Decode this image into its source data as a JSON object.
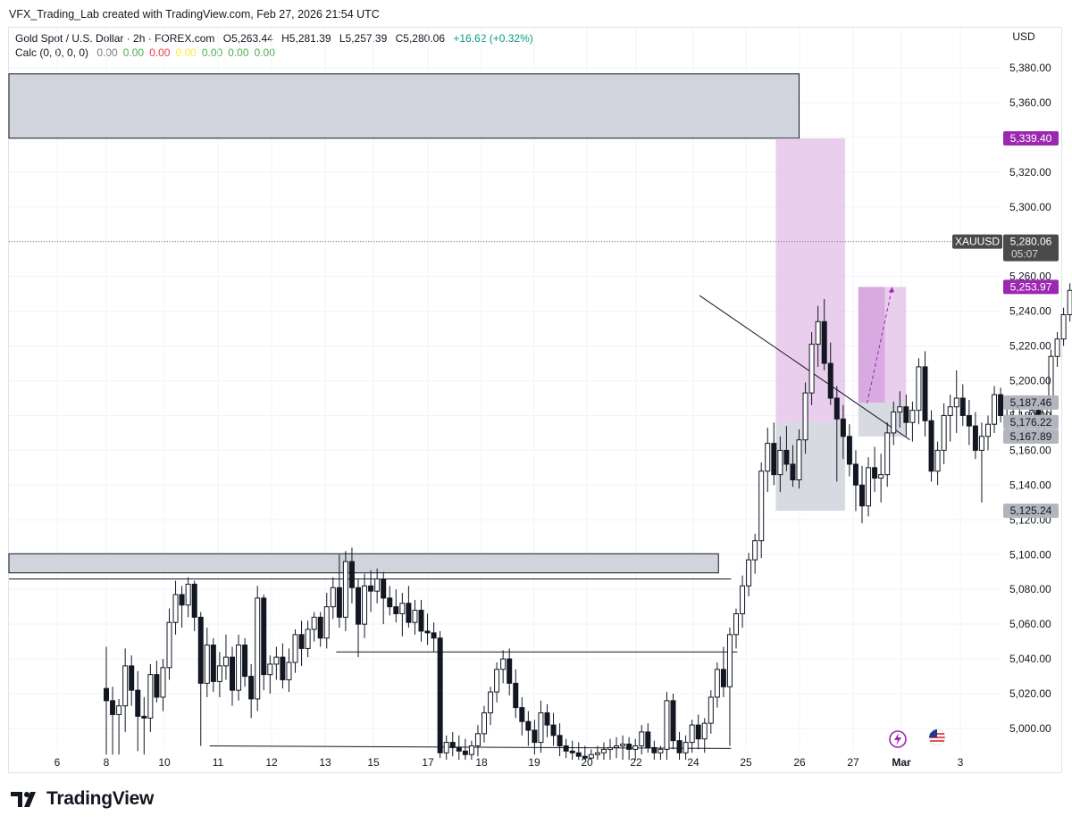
{
  "credit": "VFX_Trading_Lab created with TradingView.com, Feb 27, 2026 21:54 UTC",
  "legend": {
    "symbol": "Gold Spot / U.S. Dollar · 2h · FOREX.com",
    "open": "O5,263.44",
    "high": "H5,281.39",
    "low": "L5,257.39",
    "close": "C5,280.06",
    "change": "+16.62 (+0.32%)",
    "calc_label": "Calc (0, 0, 0, 0)",
    "calc_values": [
      {
        "v": "0.00",
        "color": "#787b86"
      },
      {
        "v": "0.00",
        "color": "#4caf50"
      },
      {
        "v": "0.00",
        "color": "#f23645"
      },
      {
        "v": "0.00",
        "color": "#ffeb3b"
      },
      {
        "v": "0.00",
        "color": "#4caf50"
      },
      {
        "v": "0.00",
        "color": "#4caf50"
      },
      {
        "v": "0.00",
        "color": "#4caf50"
      }
    ]
  },
  "currency": "USD",
  "brand": "TradingView",
  "colors": {
    "candle": "#131722",
    "zone_gray": "#d1d4dc",
    "zone_purple": "#e1bee7",
    "zone_purple_dark": "#ce93d8",
    "purple_label": "#9c27b0",
    "gray_label": "#b2b5be",
    "price_label": "#4a4a4a"
  },
  "chart_data": {
    "type": "candlestick",
    "symbol": "XAUUSD",
    "timeframe": "2h",
    "ylim": [
      4988,
      5393
    ],
    "y_ticks": [
      5000,
      5020,
      5040,
      5060,
      5080,
      5100,
      5120,
      5140,
      5160,
      5180,
      5200,
      5220,
      5240,
      5260,
      5280,
      5300,
      5320,
      5340,
      5360,
      5380
    ],
    "y_tick_labels": [
      "5,000.00",
      "5,020.00",
      "5,040.00",
      "5,060.00",
      "5,080.00",
      "5,100.00",
      "5,120.00",
      "5,140.00",
      "5,160.00",
      "5,180.00",
      "5,200.00",
      "5,220.00",
      "5,240.00",
      "5,260.00",
      "5,280.00",
      "5,300.00",
      "5,320.00",
      "5,340.00",
      "5,360.00",
      "5,380.00"
    ],
    "x_ticks": [
      "6",
      "8",
      "10",
      "11",
      "12",
      "13",
      "15",
      "17",
      "18",
      "19",
      "20",
      "22",
      "24",
      "25",
      "26",
      "27",
      "Mar",
      "3"
    ],
    "current_price": {
      "symbol": "XAUUSD",
      "value": 5280.06,
      "label": "5,280.06",
      "countdown": "05:07"
    },
    "price_labels": [
      {
        "value": 5339.4,
        "label": "5,339.40",
        "style": "purple"
      },
      {
        "value": 5253.97,
        "label": "5,253.97",
        "style": "purple"
      },
      {
        "value": 5187.46,
        "label": "5,187.46",
        "style": "gray"
      },
      {
        "value": 5176.22,
        "label": "5,176.22",
        "style": "gray"
      },
      {
        "value": 5167.89,
        "label": "5,167.89",
        "style": "gray"
      },
      {
        "value": 5125.24,
        "label": "5,125.24",
        "style": "gray"
      }
    ],
    "zones": [
      {
        "kind": "gray",
        "x_start": 0.0,
        "x_end": 110.0,
        "y_low": 5339.5,
        "y_high": 5376.5
      },
      {
        "kind": "gray",
        "x_start": 0.0,
        "x_end": 97.2,
        "y_low": 5089.5,
        "y_high": 5100.5
      },
      {
        "kind": "purple",
        "x_start": 106.3,
        "x_end": 117.3,
        "y_low": 5176.22,
        "y_high": 5339.4
      },
      {
        "kind": "gray",
        "x_start": 106.3,
        "x_end": 117.3,
        "y_low": 5125.24,
        "y_high": 5176.22
      },
      {
        "kind": "purple",
        "x_start": 119.4,
        "x_end": 127.0,
        "y_low": 5187.46,
        "y_high": 5253.97
      },
      {
        "kind": "purple_dark",
        "x_start": 119.4,
        "x_end": 123.6,
        "y_low": 5187.46,
        "y_high": 5253.97
      },
      {
        "kind": "gray",
        "x_start": 119.4,
        "x_end": 127.0,
        "y_low": 5167.89,
        "y_high": 5187.46
      }
    ],
    "lines": [
      {
        "x1": 0.0,
        "y1": 5086.0,
        "x2": 99.2,
        "y2": 5086.0
      },
      {
        "x1": 36.5,
        "y1": 5044.0,
        "x2": 100.2,
        "y2": 5044.0
      },
      {
        "x1": 16.4,
        "y1": 4990.0,
        "x2": 99.2,
        "y2": 4988.5
      },
      {
        "x1": 94.2,
        "y1": 5249.0,
        "x2": 127.6,
        "y2": 5166.0
      }
    ],
    "dashed_arrow": {
      "x1": 120.8,
      "y1": 5187.0,
      "x2": 124.8,
      "y2": 5254.0
    },
    "candles": [
      [
        5023,
        5047,
        4985,
        5016
      ],
      [
        5016,
        5024,
        4985,
        5008
      ],
      [
        5008,
        5017,
        4985,
        5013
      ],
      [
        5013,
        5046,
        4998,
        5036
      ],
      [
        5036,
        5042,
        5013,
        5022
      ],
      [
        5022,
        5033,
        4987,
        5007
      ],
      [
        5007,
        5018,
        4985,
        5006
      ],
      [
        5006,
        5037,
        4998,
        5031
      ],
      [
        5031,
        5039,
        5015,
        5018
      ],
      [
        5018,
        5040,
        5010,
        5035
      ],
      [
        5035,
        5069,
        5028,
        5061
      ],
      [
        5061,
        5085,
        5054,
        5077
      ],
      [
        5077,
        5082,
        5058,
        5071
      ],
      [
        5071,
        5087,
        5064,
        5083
      ],
      [
        5083,
        5085,
        5056,
        5064
      ],
      [
        5064,
        5067,
        4990,
        5026
      ],
      [
        5026,
        5058,
        5018,
        5048
      ],
      [
        5048,
        5052,
        5021,
        5027
      ],
      [
        5027,
        5044,
        5018,
        5036
      ],
      [
        5036,
        5054,
        5028,
        5041
      ],
      [
        5041,
        5047,
        5013,
        5022
      ],
      [
        5022,
        5054,
        5016,
        5048
      ],
      [
        5048,
        5052,
        5024,
        5030
      ],
      [
        5030,
        5037,
        5006,
        5017
      ],
      [
        5017,
        5082,
        5010,
        5075
      ],
      [
        5075,
        5077,
        5022,
        5031
      ],
      [
        5031,
        5042,
        5020,
        5037
      ],
      [
        5037,
        5047,
        5028,
        5041
      ],
      [
        5041,
        5049,
        5023,
        5028
      ],
      [
        5028,
        5046,
        5021,
        5038
      ],
      [
        5038,
        5057,
        5032,
        5054
      ],
      [
        5054,
        5062,
        5036,
        5046
      ],
      [
        5046,
        5062,
        5041,
        5057
      ],
      [
        5057,
        5067,
        5050,
        5064
      ],
      [
        5064,
        5067,
        5047,
        5052
      ],
      [
        5052,
        5078,
        5046,
        5070
      ],
      [
        5070,
        5087,
        5063,
        5081
      ],
      [
        5081,
        5100,
        5058,
        5064
      ],
      [
        5064,
        5102,
        5056,
        5096
      ],
      [
        5096,
        5104,
        5072,
        5081
      ],
      [
        5081,
        5086,
        5041,
        5060
      ],
      [
        5060,
        5089,
        5052,
        5082
      ],
      [
        5082,
        5091,
        5067,
        5079
      ],
      [
        5079,
        5092,
        5072,
        5086
      ],
      [
        5086,
        5090,
        5060,
        5075
      ],
      [
        5075,
        5082,
        5065,
        5070
      ],
      [
        5070,
        5080,
        5061,
        5066
      ],
      [
        5066,
        5078,
        5053,
        5072
      ],
      [
        5072,
        5082,
        5058,
        5061
      ],
      [
        5061,
        5074,
        5054,
        5068
      ],
      [
        5068,
        5074,
        5050,
        5056
      ],
      [
        5056,
        5066,
        5048,
        5055
      ],
      [
        5055,
        5061,
        5044,
        5052
      ],
      [
        5052,
        5056,
        4983,
        4986
      ],
      [
        4986,
        4996,
        4982,
        4992
      ],
      [
        4992,
        4998,
        4984,
        4989
      ],
      [
        4989,
        4996,
        4982,
        4987
      ],
      [
        4987,
        4994,
        4982,
        4985
      ],
      [
        4985,
        4993,
        4982,
        4990
      ],
      [
        4990,
        5002,
        4984,
        4997
      ],
      [
        4997,
        5013,
        4992,
        5009
      ],
      [
        5009,
        5024,
        5002,
        5021
      ],
      [
        5021,
        5038,
        5015,
        5034
      ],
      [
        5034,
        5045,
        5026,
        5040
      ],
      [
        5040,
        5046,
        5019,
        5026
      ],
      [
        5026,
        5034,
        5006,
        5012
      ],
      [
        5012,
        5018,
        4996,
        5004
      ],
      [
        5004,
        5010,
        4990,
        4999
      ],
      [
        4999,
        5005,
        4985,
        4992
      ],
      [
        4992,
        5016,
        4986,
        5009
      ],
      [
        5009,
        5014,
        4995,
        5002
      ],
      [
        5002,
        5009,
        4990,
        4996
      ],
      [
        4996,
        5003,
        4984,
        4990
      ],
      [
        4990,
        4994,
        4983,
        4987
      ],
      [
        4987,
        4993,
        4982,
        4986
      ],
      [
        4986,
        4992,
        4982,
        4984
      ],
      [
        4984,
        4990,
        4982,
        4983
      ],
      [
        4983,
        4988,
        4982,
        4985
      ],
      [
        4985,
        4990,
        4982,
        4986
      ],
      [
        4986,
        4992,
        4982,
        4988
      ],
      [
        4988,
        4994,
        4982,
        4989
      ],
      [
        4989,
        4995,
        4983,
        4990
      ],
      [
        4990,
        4996,
        4982,
        4991
      ],
      [
        4991,
        4995,
        4982,
        4988
      ],
      [
        4988,
        4994,
        4982,
        4990
      ],
      [
        4990,
        5002,
        4985,
        4998
      ],
      [
        4998,
        5003,
        4986,
        4989
      ],
      [
        4989,
        4993,
        4982,
        4986
      ],
      [
        4986,
        4990,
        4982,
        4988
      ],
      [
        4988,
        5021,
        4982,
        5016
      ],
      [
        5016,
        5020,
        4988,
        4993
      ],
      [
        4993,
        4998,
        4982,
        4986
      ],
      [
        4986,
        4996,
        4982,
        4992
      ],
      [
        4992,
        5005,
        4986,
        5002
      ],
      [
        5002,
        5008,
        4988,
        4994
      ],
      [
        4994,
        5006,
        4986,
        5003
      ],
      [
        5003,
        5022,
        4997,
        5018
      ],
      [
        5018,
        5038,
        5012,
        5034
      ],
      [
        5034,
        5047,
        5018,
        5024
      ],
      [
        5024,
        5058,
        4990,
        5054
      ],
      [
        5054,
        5069,
        5046,
        5066
      ],
      [
        5066,
        5088,
        5058,
        5082
      ],
      [
        5082,
        5101,
        5076,
        5097
      ],
      [
        5097,
        5112,
        5089,
        5108
      ],
      [
        5108,
        5153,
        5098,
        5148
      ],
      [
        5148,
        5173,
        5136,
        5164
      ],
      [
        5164,
        5176,
        5140,
        5146
      ],
      [
        5146,
        5168,
        5136,
        5160
      ],
      [
        5160,
        5174,
        5148,
        5152
      ],
      [
        5152,
        5163,
        5139,
        5143
      ],
      [
        5143,
        5172,
        5138,
        5166
      ],
      [
        5166,
        5199,
        5158,
        5193
      ],
      [
        5193,
        5228,
        5186,
        5221
      ],
      [
        5221,
        5243,
        5208,
        5234
      ],
      [
        5234,
        5247,
        5206,
        5210
      ],
      [
        5210,
        5222,
        5186,
        5190
      ],
      [
        5190,
        5197,
        5142,
        5178
      ],
      [
        5178,
        5186,
        5155,
        5168
      ],
      [
        5168,
        5175,
        5145,
        5152
      ],
      [
        5152,
        5160,
        5125,
        5140
      ],
      [
        5140,
        5151,
        5118,
        5128
      ],
      [
        5128,
        5156,
        5122,
        5150
      ],
      [
        5150,
        5162,
        5136,
        5144
      ],
      [
        5144,
        5158,
        5130,
        5146
      ],
      [
        5146,
        5176,
        5139,
        5170
      ],
      [
        5170,
        5188,
        5163,
        5182
      ],
      [
        5182,
        5194,
        5173,
        5185
      ],
      [
        5185,
        5192,
        5168,
        5176
      ],
      [
        5176,
        5188,
        5165,
        5183
      ],
      [
        5183,
        5213,
        5175,
        5208
      ],
      [
        5208,
        5217,
        5168,
        5177
      ],
      [
        5177,
        5183,
        5142,
        5148
      ],
      [
        5148,
        5165,
        5140,
        5160
      ],
      [
        5160,
        5187,
        5152,
        5180
      ],
      [
        5180,
        5192,
        5165,
        5185
      ],
      [
        5185,
        5206,
        5170,
        5190
      ],
      [
        5190,
        5198,
        5174,
        5180
      ],
      [
        5180,
        5189,
        5163,
        5174
      ],
      [
        5174,
        5182,
        5155,
        5160
      ],
      [
        5160,
        5176,
        5130,
        5168
      ],
      [
        5168,
        5180,
        5160,
        5175
      ],
      [
        5175,
        5197,
        5170,
        5192
      ],
      [
        5192,
        5196,
        5176,
        5180
      ],
      [
        5180,
        5186,
        5168,
        5176
      ],
      [
        5176,
        5184,
        5170,
        5178
      ],
      [
        5178,
        5184,
        5172,
        5175
      ],
      [
        5175,
        5182,
        5166,
        5180
      ],
      [
        5180,
        5186,
        5176,
        5183
      ],
      [
        5183,
        5187,
        5168,
        5174
      ],
      [
        5174,
        5190,
        5168,
        5185
      ],
      [
        5185,
        5218,
        5180,
        5214
      ],
      [
        5214,
        5228,
        5208,
        5224
      ],
      [
        5224,
        5242,
        5220,
        5238
      ],
      [
        5238,
        5256,
        5234,
        5252
      ],
      [
        5252,
        5266,
        5248,
        5263
      ],
      [
        5263,
        5281.39,
        5257.39,
        5280.06
      ]
    ]
  }
}
